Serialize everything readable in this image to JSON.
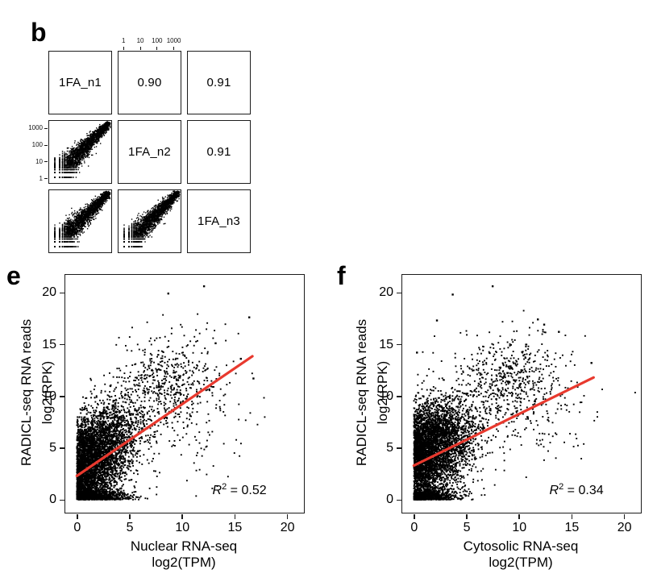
{
  "colors": {
    "point": "#000000",
    "regression": "#e8392e",
    "frame": "#1c1c1c",
    "text": "#000000",
    "background": "#ffffff"
  },
  "chart_data": [
    {
      "id": "pairs_matrix",
      "type": "scatter-matrix",
      "panel_letter": "b",
      "samples": [
        "1FA_n1",
        "1FA_n2",
        "1FA_n3"
      ],
      "pearson_r": {
        "n1_vs_n2": "0.90",
        "n1_vs_n3": "0.91",
        "n2_vs_n3": "0.91"
      },
      "axis_scale": "log10",
      "axis_ticks": [
        "1",
        "10",
        "100",
        "1000"
      ],
      "axis_tick_values": [
        1,
        10,
        100,
        1000
      ],
      "log_range": [
        -0.35,
        3.5
      ],
      "lower_cells": [
        {
          "x_sample": "1FA_n1",
          "y_sample": "1FA_n2",
          "seed": 11
        },
        {
          "x_sample": "1FA_n1",
          "y_sample": "1FA_n3",
          "seed": 23
        },
        {
          "x_sample": "1FA_n2",
          "y_sample": "1FA_n3",
          "seed": 37
        }
      ],
      "sim": {
        "n": 2600,
        "u_pow": 1.15,
        "u_max": 3.35,
        "sd_base": 0.09,
        "sd_slope": 0.3
      }
    },
    {
      "id": "radicl_vs_nuclear",
      "type": "scatter",
      "panel_letter": "e",
      "xlabel": [
        "Nuclear RNA-seq",
        "log2(TPM)"
      ],
      "ylabel": [
        "RADICL-seq RNA reads",
        "log2(RPK)"
      ],
      "x_ticks": [
        0,
        5,
        10,
        15,
        20
      ],
      "y_ticks": [
        0,
        5,
        10,
        15,
        20
      ],
      "xlim": [
        -1.1,
        21.6
      ],
      "ylim": [
        -1.25,
        21.7
      ],
      "r_squared": 0.52,
      "r2_label": {
        "symbol": "R",
        "exponent": "2",
        "rest": " = 0.52"
      },
      "regression_line": {
        "x1": 0,
        "y1": 2.3,
        "x2": 16.7,
        "y2": 13.85
      },
      "seed": 101,
      "point_clusters": [
        {
          "n": 4200,
          "mx": 0,
          "sdx": 2.6,
          "my": 3.0,
          "slope": 0.6,
          "sdy": 2.3,
          "absx": true,
          "absy": true
        },
        {
          "n": 900,
          "mx": 0,
          "sdx": 2.2,
          "my": 0.1,
          "slope": 0,
          "sdy": 0.45,
          "absx": true,
          "absy": true
        },
        {
          "n": 430,
          "mx": 8.6,
          "sdx": 2.2,
          "my": 11.3,
          "slope": 0,
          "sdy": 2.2
        },
        {
          "n": 130,
          "mx": 11,
          "sdx": 2.8,
          "my": 8.0,
          "slope": 0,
          "sdy": 3.0
        },
        {
          "n": 22,
          "mx": 12,
          "sdx": 2.6,
          "my": 14.5,
          "slope": 0,
          "sdy": 2.2
        }
      ],
      "outlier_points": [
        [
          12.1,
          20.6
        ],
        [
          8.7,
          19.9
        ],
        [
          16.4,
          17.6
        ],
        [
          16.8,
          11.7
        ],
        [
          15.6,
          13.6
        ],
        [
          13.2,
          15.1
        ]
      ]
    },
    {
      "id": "radicl_vs_cytosolic",
      "type": "scatter",
      "panel_letter": "f",
      "xlabel": [
        "Cytosolic RNA-seq",
        "log2(TPM)"
      ],
      "ylabel": [
        "RADICL-seq RNA reads",
        "log2(RPK)"
      ],
      "x_ticks": [
        0,
        5,
        10,
        15,
        20
      ],
      "y_ticks": [
        0,
        5,
        10,
        15,
        20
      ],
      "xlim": [
        -1.1,
        21.6
      ],
      "ylim": [
        -1.25,
        21.7
      ],
      "r_squared": 0.34,
      "r2_label": {
        "symbol": "R",
        "exponent": "2",
        "rest": " = 0.34"
      },
      "regression_line": {
        "x1": 0,
        "y1": 3.3,
        "x2": 17.1,
        "y2": 11.8
      },
      "seed": 202,
      "point_clusters": [
        {
          "n": 4300,
          "mx": 0,
          "sdx": 2.6,
          "my": 4.3,
          "slope": 0.38,
          "sdy": 2.2,
          "absx": true,
          "absy": true
        },
        {
          "n": 800,
          "mx": 0,
          "sdx": 2.0,
          "my": 0.1,
          "slope": 0,
          "sdy": 0.5,
          "absx": true,
          "absy": true
        },
        {
          "n": 480,
          "mx": 9.0,
          "sdx": 2.5,
          "my": 11.4,
          "slope": 0,
          "sdy": 2.2
        },
        {
          "n": 150,
          "mx": 11,
          "sdx": 3.0,
          "my": 8.5,
          "slope": 0,
          "sdy": 3.0
        },
        {
          "n": 18,
          "mx": 12.5,
          "sdx": 2.0,
          "my": 14.5,
          "slope": 0,
          "sdy": 1.5
        }
      ],
      "outlier_points": [
        [
          7.5,
          20.6
        ],
        [
          3.7,
          19.8
        ],
        [
          2.2,
          17.3
        ],
        [
          11.8,
          17.4
        ],
        [
          12.4,
          16.9
        ],
        [
          16.9,
          13.2
        ],
        [
          0.3,
          14.2
        ],
        [
          13.8,
          16.2
        ]
      ]
    }
  ]
}
